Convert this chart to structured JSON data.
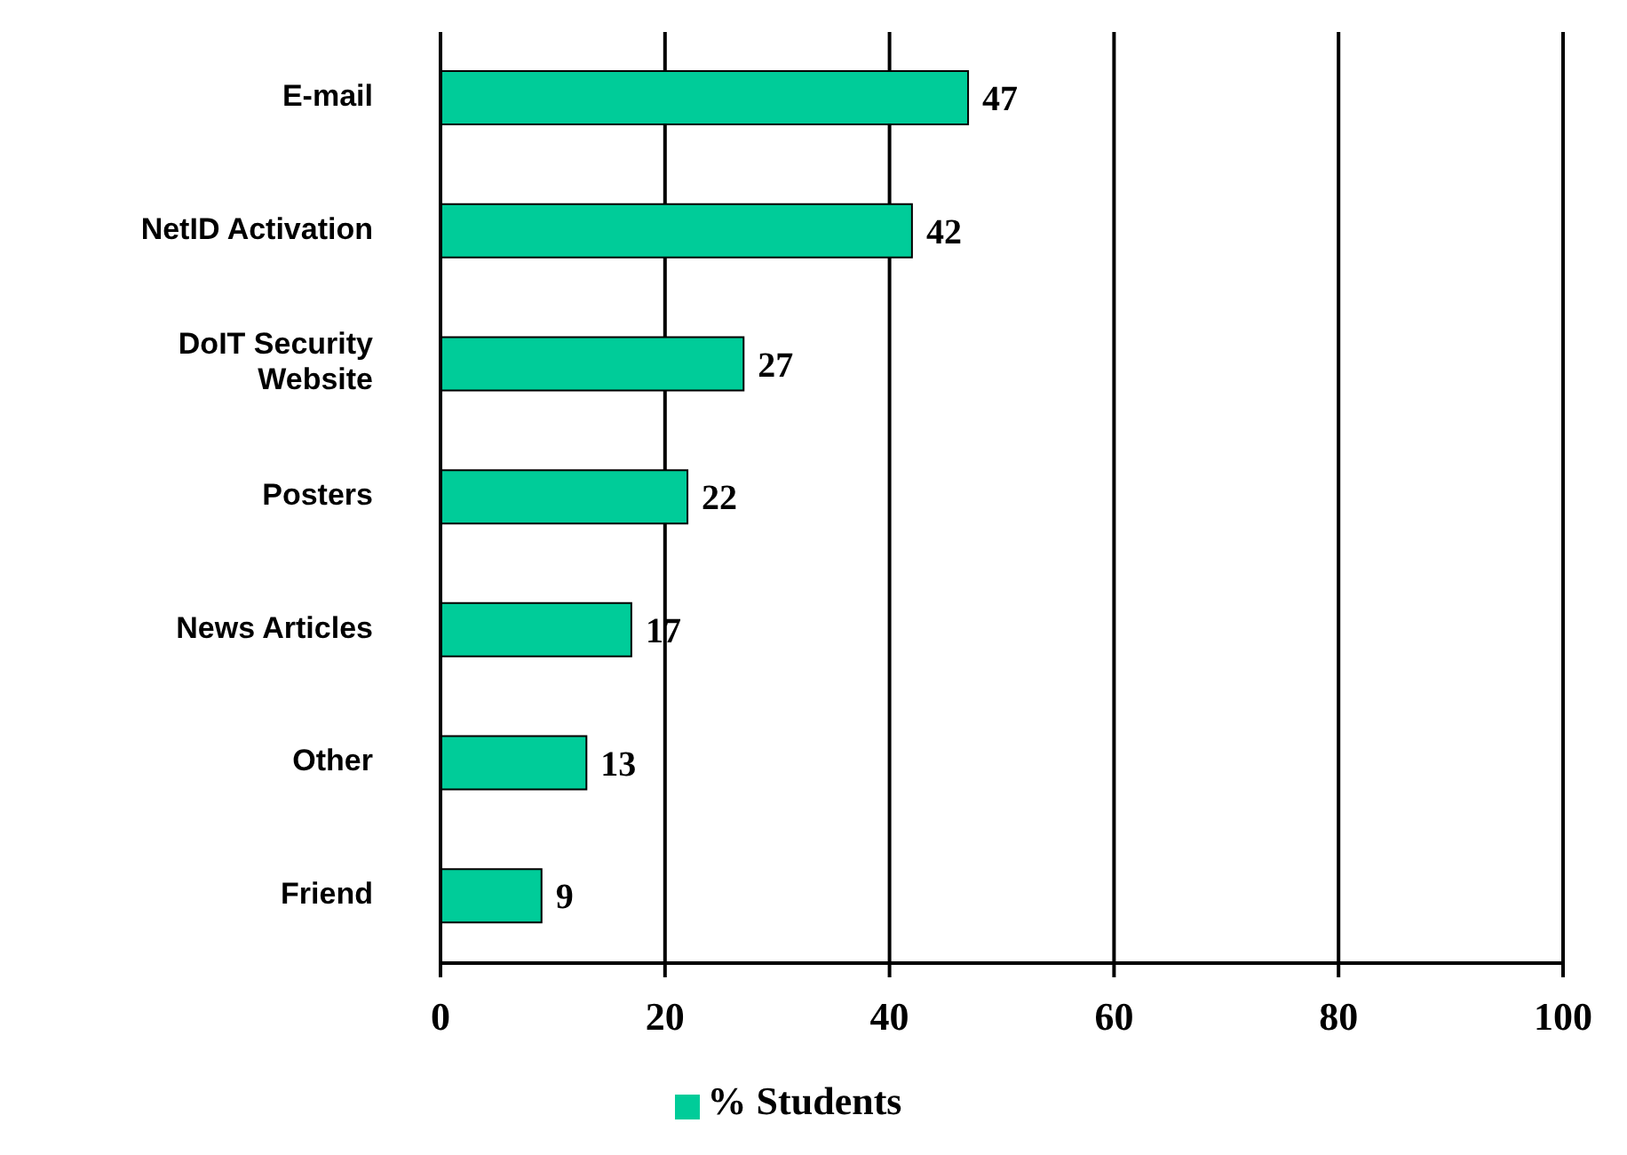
{
  "chart_data": {
    "type": "bar",
    "orientation": "horizontal",
    "categories": [
      "E-mail",
      "NetID Activation",
      "DoIT Security Website",
      "Posters",
      "News Articles",
      "Other",
      "Friend"
    ],
    "series": [
      {
        "name": "% Students",
        "color": "#00cc99",
        "values": [
          47,
          42,
          27,
          22,
          17,
          13,
          9
        ]
      }
    ],
    "xlim": [
      0,
      100
    ],
    "xticks": [
      0,
      20,
      40,
      60,
      80,
      100
    ],
    "grid": "x",
    "legend": "bottom",
    "data_labels": true
  }
}
